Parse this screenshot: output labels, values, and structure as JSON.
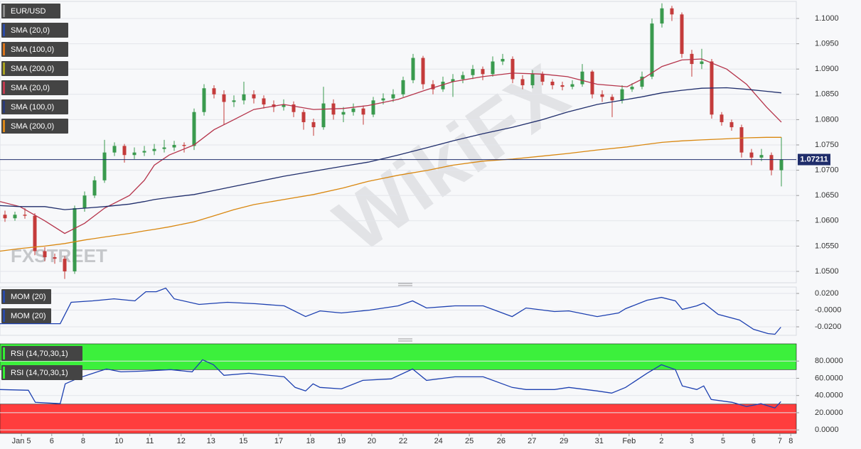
{
  "watermarks": [
    "WikiFX",
    "FXSTREET"
  ],
  "chart_data": [
    {
      "type": "candlestick",
      "legend_entries": [
        {
          "name": "EUR/USD",
          "color": "#8a8a8a"
        },
        {
          "name": "SMA (20,0)",
          "color": "#2a4aa8"
        },
        {
          "name": "SMA (100,0)",
          "color": "#d9731a"
        },
        {
          "name": "SMA (200,0)",
          "color": "#a8a020"
        },
        {
          "name": "SMA (20,0)",
          "color": "#c0394f"
        },
        {
          "name": "SMA (100,0)",
          "color": "#2a3a7a"
        },
        {
          "name": "SMA (200,0)",
          "color": "#d9871a"
        }
      ],
      "up_color": "#3a9a4e",
      "down_color": "#c43b3b",
      "x": [
        1,
        3,
        5,
        7,
        9,
        11,
        13,
        15,
        17,
        19,
        21,
        23,
        25,
        27,
        29,
        31,
        33,
        35,
        37,
        39,
        41,
        43,
        45,
        47,
        49,
        51,
        53,
        55,
        57,
        59,
        61,
        63,
        65,
        67,
        69,
        71,
        73,
        75,
        77,
        79,
        81,
        83,
        85,
        87,
        89,
        91,
        93,
        95,
        97,
        99,
        101,
        103,
        105,
        107,
        109,
        111,
        113,
        115,
        117,
        119,
        121,
        123,
        125,
        127,
        129,
        131,
        133,
        135,
        137,
        139,
        141,
        143,
        145,
        147,
        149,
        151,
        153,
        155,
        157
      ],
      "open": [
        1.0612,
        1.0605,
        1.0612,
        1.061,
        1.054,
        1.0528,
        1.0525,
        1.05,
        1.0625,
        1.065,
        1.068,
        1.0735,
        1.0748,
        1.073,
        1.0735,
        1.0738,
        1.0742,
        1.0745,
        1.075,
        1.0748,
        1.0815,
        1.0862,
        1.085,
        1.0835,
        1.0838,
        1.085,
        1.0842,
        1.083,
        1.0825,
        1.083,
        1.0815,
        1.0795,
        1.0785,
        1.0832,
        1.081,
        1.0815,
        1.0822,
        1.081,
        1.0838,
        1.0842,
        1.085,
        1.0878,
        1.0922,
        1.087,
        1.086,
        1.0875,
        1.088,
        1.0888,
        1.09,
        1.089,
        1.0915,
        1.092,
        1.088,
        1.0868,
        1.089,
        1.0875,
        1.0868,
        1.0865,
        1.087,
        1.0895,
        1.085,
        1.0845,
        1.0838,
        1.086,
        1.0865,
        1.0885,
        1.099,
        1.102,
        1.1008,
        1.093,
        1.091,
        1.0915,
        1.081,
        1.0795,
        1.0785,
        1.0735,
        1.0725,
        1.073,
        1.07
      ],
      "high": [
        1.062,
        1.0618,
        1.0625,
        1.0615,
        1.0548,
        1.0535,
        1.053,
        1.063,
        1.0658,
        1.0688,
        1.076,
        1.0755,
        1.0752,
        1.0745,
        1.0748,
        1.0752,
        1.076,
        1.0758,
        1.0755,
        1.0822,
        1.087,
        1.0868,
        1.0858,
        1.0848,
        1.0875,
        1.0858,
        1.0848,
        1.0838,
        1.084,
        1.0836,
        1.082,
        1.0802,
        1.0865,
        1.084,
        1.0825,
        1.0832,
        1.0828,
        1.0845,
        1.0852,
        1.086,
        1.0885,
        1.093,
        1.0926,
        1.0878,
        1.0885,
        1.089,
        1.0895,
        1.0908,
        1.0905,
        1.0925,
        1.093,
        1.0925,
        1.0888,
        1.0898,
        1.0895,
        1.088,
        1.0875,
        1.0878,
        1.091,
        1.0898,
        1.0858,
        1.085,
        1.0868,
        1.0872,
        1.0895,
        1.1,
        1.103,
        1.1025,
        1.1012,
        1.0938,
        1.094,
        1.092,
        1.0815,
        1.08,
        1.079,
        1.0742,
        1.0742,
        1.0735,
        1.0765
      ],
      "low": [
        1.0598,
        1.06,
        1.0604,
        1.0532,
        1.052,
        1.0515,
        1.0485,
        1.0495,
        1.0618,
        1.0645,
        1.0675,
        1.0728,
        1.0715,
        1.0722,
        1.0728,
        1.073,
        1.0735,
        1.0738,
        1.0735,
        1.074,
        1.0808,
        1.0842,
        1.079,
        1.0825,
        1.083,
        1.0832,
        1.0822,
        1.0815,
        1.0818,
        1.0805,
        1.078,
        1.0768,
        1.078,
        1.08,
        1.0795,
        1.0808,
        1.079,
        1.0805,
        1.083,
        1.0835,
        1.0845,
        1.0872,
        1.086,
        1.085,
        1.0855,
        1.0845,
        1.0872,
        1.088,
        1.0878,
        1.0885,
        1.0908,
        1.0872,
        1.086,
        1.0862,
        1.0868,
        1.086,
        1.0858,
        1.086,
        1.0865,
        1.0842,
        1.0835,
        1.0805,
        1.0832,
        1.0855,
        1.086,
        1.088,
        1.0982,
        1.0995,
        1.0922,
        1.0885,
        1.09,
        1.0802,
        1.0788,
        1.0778,
        1.0725,
        1.071,
        1.0718,
        1.069,
        1.0668
      ],
      "close": [
        1.0605,
        1.0612,
        1.061,
        1.054,
        1.0528,
        1.0525,
        1.05,
        1.0625,
        1.065,
        1.068,
        1.0735,
        1.0748,
        1.073,
        1.0735,
        1.0738,
        1.0742,
        1.0745,
        1.075,
        1.0748,
        1.0815,
        1.0862,
        1.085,
        1.0835,
        1.0838,
        1.085,
        1.0842,
        1.083,
        1.0825,
        1.083,
        1.0815,
        1.0795,
        1.0785,
        1.0832,
        1.081,
        1.0815,
        1.0822,
        1.081,
        1.0838,
        1.0842,
        1.085,
        1.0878,
        1.0922,
        1.087,
        1.086,
        1.0875,
        1.088,
        1.0888,
        1.09,
        1.089,
        1.0915,
        1.092,
        1.088,
        1.0868,
        1.089,
        1.0875,
        1.0868,
        1.0865,
        1.087,
        1.0895,
        1.085,
        1.0845,
        1.0838,
        1.086,
        1.0865,
        1.0885,
        1.099,
        1.102,
        1.1008,
        1.093,
        1.091,
        1.0915,
        1.081,
        1.0795,
        1.0785,
        1.0735,
        1.0725,
        1.073,
        1.07,
        1.07211
      ],
      "series": [
        {
          "name": "SMA (20,0)",
          "color": "#b5334a",
          "x": [
            0,
            4,
            9,
            13,
            17,
            21,
            26,
            29,
            31,
            34,
            39,
            43,
            47,
            51,
            57,
            63,
            69,
            74,
            80,
            86,
            91,
            97,
            103,
            109,
            114,
            120,
            126,
            129,
            133,
            137,
            141,
            146,
            150,
            154,
            157
          ],
          "values": [
            1.0638,
            1.0628,
            1.06,
            1.0575,
            1.0595,
            1.0625,
            1.065,
            1.068,
            1.071,
            1.073,
            1.075,
            1.078,
            1.08,
            1.082,
            1.083,
            1.082,
            1.0822,
            1.0828,
            1.084,
            1.086,
            1.0875,
            1.0885,
            1.0892,
            1.089,
            1.0885,
            1.087,
            1.0865,
            1.088,
            1.0905,
            1.0918,
            1.092,
            1.09,
            1.087,
            1.0825,
            1.0795
          ]
        },
        {
          "name": "SMA (100,0)",
          "color": "#1f2d6b",
          "x": [
            0,
            4,
            9,
            13,
            17,
            21,
            26,
            29,
            31,
            34,
            39,
            43,
            47,
            51,
            57,
            63,
            69,
            74,
            80,
            86,
            91,
            97,
            103,
            109,
            114,
            120,
            126,
            129,
            133,
            137,
            141,
            146,
            150,
            154,
            157
          ],
          "values": [
            1.063,
            1.0628,
            1.0628,
            1.0622,
            1.0625,
            1.0628,
            1.0633,
            1.0638,
            1.0642,
            1.0646,
            1.0652,
            1.066,
            1.0668,
            1.0676,
            1.0688,
            1.0698,
            1.0708,
            1.0716,
            1.073,
            1.0745,
            1.0758,
            1.0772,
            1.0785,
            1.08,
            1.0815,
            1.083,
            1.084,
            1.0845,
            1.0853,
            1.0858,
            1.0862,
            1.0863,
            1.086,
            1.0856,
            1.0853
          ]
        },
        {
          "name": "SMA (200,0)",
          "color": "#d9870f",
          "x": [
            0,
            4,
            9,
            13,
            17,
            21,
            26,
            29,
            31,
            34,
            39,
            43,
            47,
            51,
            57,
            63,
            69,
            74,
            80,
            86,
            91,
            97,
            103,
            109,
            114,
            120,
            126,
            129,
            133,
            137,
            141,
            146,
            150,
            154,
            157
          ],
          "values": [
            1.054,
            1.0545,
            1.055,
            1.0555,
            1.0562,
            1.0568,
            1.0575,
            1.058,
            1.0583,
            1.0588,
            1.0598,
            1.061,
            1.0622,
            1.0632,
            1.0642,
            1.0652,
            1.0665,
            1.0678,
            1.069,
            1.07,
            1.071,
            1.0718,
            1.0722,
            1.0728,
            1.0733,
            1.074,
            1.0746,
            1.075,
            1.0755,
            1.0758,
            1.076,
            1.0762,
            1.0764,
            1.0765,
            1.0765
          ]
        }
      ],
      "last_price": 1.07211,
      "xlim": [
        0,
        160
      ],
      "ylim": [
        1.04775,
        1.10337
      ],
      "yticks": [
        {
          "value": 1.05,
          "label": "1.0500"
        },
        {
          "value": 1.055,
          "label": "1.0550"
        },
        {
          "value": 1.06,
          "label": "1.0600"
        },
        {
          "value": 1.065,
          "label": "1.0650"
        },
        {
          "value": 1.07,
          "label": "1.0700"
        },
        {
          "value": 1.075,
          "label": "1.0750"
        },
        {
          "value": 1.08,
          "label": "1.0800"
        },
        {
          "value": 1.085,
          "label": "1.0850"
        },
        {
          "value": 1.09,
          "label": "1.0900"
        },
        {
          "value": 1.095,
          "label": "1.0950"
        },
        {
          "value": 1.1,
          "label": "1.1000"
        }
      ],
      "grid": true
    },
    {
      "type": "line",
      "legend_entries": [
        {
          "name": "MOM (20)",
          "color": "#2a4aa8"
        },
        {
          "name": "MOM (20)",
          "color": "#2a4aa8"
        }
      ],
      "series": [
        {
          "name": "MOM (20)",
          "color": "#1c3fb0",
          "x": [
            0,
            12.1,
            14.3,
            18.6,
            22.9,
            27.1,
            29.3,
            31.4,
            33.3,
            35,
            40,
            45.7,
            51.4,
            57.1,
            61.4,
            64.3,
            68.6,
            74.3,
            80,
            82.9,
            85.7,
            91.4,
            97.1,
            102.9,
            105.7,
            111.4,
            114.3,
            120,
            124.3,
            125.7,
            130,
            132.9,
            135.7,
            137.1,
            140,
            141.4,
            144.3,
            148.6,
            151.4,
            154.3,
            155.7,
            156.9
          ],
          "values": [
            -0.0162,
            -0.0162,
            0.0094,
            0.0111,
            0.0136,
            0.0111,
            0.0221,
            0.0221,
            0.0264,
            0.0136,
            0.0068,
            0.0094,
            0.0077,
            0.0051,
            -0.0077,
            -0.0009,
            -0.0034,
            0,
            0.0051,
            0.0111,
            0.0026,
            0.0051,
            0.0051,
            -0.0077,
            0.0026,
            -0.0017,
            -0.0009,
            -0.0077,
            -0.0034,
            0.0017,
            0.0119,
            0.0153,
            0.0111,
            0.0009,
            0.0051,
            0.0085,
            -0.0051,
            -0.0119,
            -0.023,
            -0.0281,
            -0.0289,
            -0.0204
          ]
        }
      ],
      "xlim": [
        0,
        160
      ],
      "ylim": [
        -0.0302,
        0.0277
      ],
      "yticks": [
        {
          "value": 0.02,
          "label": "0.0200"
        },
        {
          "value": 0,
          "label": "-0.0000"
        },
        {
          "value": -0.02,
          "label": "-0.0200"
        }
      ],
      "grid": true
    },
    {
      "type": "line",
      "legend_entries": [
        {
          "name": "RSI (14,70,30,1)",
          "color": "#33ee33"
        },
        {
          "name": "RSI (14,70,30,1)",
          "color": "#33ee33"
        }
      ],
      "overbought": 70,
      "oversold": 30,
      "overbought_color": "#3cf03c",
      "oversold_color": "#ff3d3d",
      "series": [
        {
          "name": "RSI (14,70,30,1)",
          "color": "#1c3fb0",
          "x": [
            0,
            5.7,
            7.1,
            12.1,
            13.1,
            15.7,
            20,
            21.4,
            24.3,
            28.6,
            34.3,
            38.6,
            40.7,
            42.9,
            45,
            50,
            57.1,
            59.3,
            61.4,
            62.9,
            64.3,
            68.6,
            72.9,
            78.6,
            82.9,
            85.7,
            91.4,
            97.1,
            102.9,
            105.7,
            111.4,
            114.3,
            120,
            122.9,
            125.7,
            130,
            132.9,
            135.7,
            137.1,
            140,
            141.4,
            142.9,
            147.1,
            150,
            152.9,
            155.7,
            156.9
          ],
          "values": [
            46.9,
            46.1,
            32.1,
            30.5,
            53.5,
            60.1,
            68.3,
            70.8,
            67.5,
            68.3,
            70.0,
            67.5,
            81.5,
            75.7,
            63.4,
            65.8,
            61.7,
            49.4,
            45.3,
            53.5,
            49.4,
            47.7,
            57.6,
            59.3,
            70.8,
            57.6,
            61.7,
            61.7,
            49.4,
            46.9,
            46.9,
            49.4,
            45.3,
            42.8,
            49.4,
            65.8,
            75.7,
            70.0,
            51.1,
            46.9,
            51.1,
            35.4,
            32.1,
            27.2,
            30.5,
            25.5,
            32.9
          ]
        }
      ],
      "xlim": [
        0,
        160
      ],
      "ylim": [
        -4,
        100
      ],
      "yticks": [
        {
          "value": 0,
          "label": "0.0000"
        },
        {
          "value": 20,
          "label": "20.0000"
        },
        {
          "value": 40,
          "label": "40.0000"
        },
        {
          "value": 60,
          "label": "60.0000"
        },
        {
          "value": 80,
          "label": "80.0000"
        }
      ],
      "xticks": [
        {
          "value": 4.3,
          "label": "Jan 5"
        },
        {
          "value": 10.4,
          "label": "6"
        },
        {
          "value": 16.7,
          "label": "8"
        },
        {
          "value": 23.9,
          "label": "10"
        },
        {
          "value": 30.1,
          "label": "11"
        },
        {
          "value": 36.4,
          "label": "12"
        },
        {
          "value": 42.4,
          "label": "13"
        },
        {
          "value": 48.9,
          "label": "15"
        },
        {
          "value": 56,
          "label": "17"
        },
        {
          "value": 62.4,
          "label": "18"
        },
        {
          "value": 68.6,
          "label": "19"
        },
        {
          "value": 74.7,
          "label": "20"
        },
        {
          "value": 81,
          "label": "22"
        },
        {
          "value": 88.1,
          "label": "24"
        },
        {
          "value": 94.3,
          "label": "25"
        },
        {
          "value": 100.7,
          "label": "26"
        },
        {
          "value": 106.9,
          "label": "27"
        },
        {
          "value": 113.3,
          "label": "29"
        },
        {
          "value": 120.4,
          "label": "31"
        },
        {
          "value": 126.4,
          "label": "Feb"
        },
        {
          "value": 132.9,
          "label": "2"
        },
        {
          "value": 139,
          "label": "3"
        },
        {
          "value": 145.3,
          "label": "5"
        },
        {
          "value": 151.4,
          "label": "6"
        },
        {
          "value": 156.7,
          "label": "7"
        },
        {
          "value": 158.9,
          "label": "8"
        }
      ],
      "grid": true
    }
  ]
}
